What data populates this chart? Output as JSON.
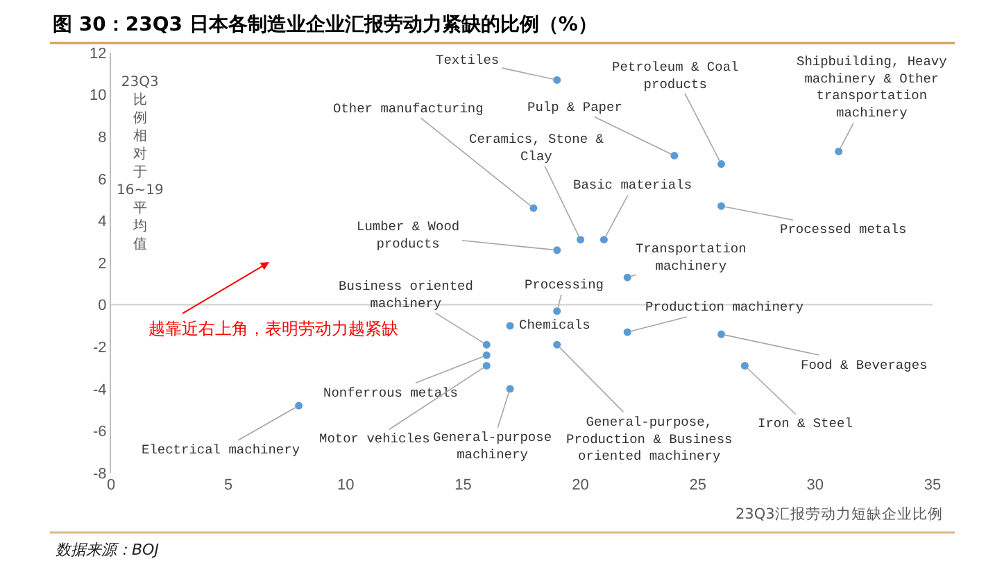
{
  "chart_data": {
    "type": "scatter",
    "title": "图 30：23Q3 日本各制造业企业汇报劳动力紧缺的比例（%）",
    "xlabel": "23Q3汇报劳动力短缺企业比例",
    "ylabel": "23Q3比例相对于16~19平均值",
    "x": [
      19,
      26,
      31,
      24,
      18,
      20,
      21,
      19,
      26,
      22,
      19,
      17,
      22,
      26,
      19,
      27,
      17,
      16,
      16,
      16,
      8
    ],
    "series": [
      {
        "color": "#5b9bd5",
        "values": [
          10.7,
          6.7,
          7.3,
          7.1,
          4.6,
          3.1,
          3.1,
          2.6,
          4.7,
          1.3,
          -0.3,
          -1.0,
          -1.3,
          -1.4,
          -1.9,
          -2.9,
          -4.0,
          -1.9,
          -2.4,
          -2.9,
          -4.8
        ]
      }
    ],
    "xlim": [
      0,
      35
    ],
    "ylim": [
      -8,
      12
    ],
    "xticks": [
      0,
      5,
      10,
      15,
      20,
      25,
      30,
      35
    ],
    "yticks": [
      -8,
      -6,
      -4,
      -2,
      0,
      2,
      4,
      6,
      8,
      10,
      12
    ],
    "grid": false,
    "marker": "circle",
    "ref_lines": [
      {
        "axis": "y",
        "value": 0,
        "color": "#d0d0d0"
      }
    ],
    "annotations": [
      {
        "text": "Textiles",
        "x": 19,
        "y": 10.7
      },
      {
        "text": "Petroleum & Coal products",
        "x": 26,
        "y": 6.7
      },
      {
        "text": "Shipbuilding, Heavy machinery & Other transportation machinery",
        "x": 31,
        "y": 7.3
      },
      {
        "text": "Pulp & Paper",
        "x": 24,
        "y": 7.1
      },
      {
        "text": "Other manufacturing",
        "x": 18,
        "y": 4.6
      },
      {
        "text": "Ceramics, Stone & Clay",
        "x": 20,
        "y": 3.1
      },
      {
        "text": "Basic materials",
        "x": 21,
        "y": 3.1
      },
      {
        "text": "Lumber & Wood products",
        "x": 19,
        "y": 2.6
      },
      {
        "text": "Processed metals",
        "x": 26,
        "y": 4.7
      },
      {
        "text": "Transportation machinery",
        "x": 22,
        "y": 1.3
      },
      {
        "text": "Processing",
        "x": 19,
        "y": -0.3
      },
      {
        "text": "Chemicals",
        "x": 17,
        "y": -1.0
      },
      {
        "text": "Production machinery",
        "x": 22,
        "y": -1.3
      },
      {
        "text": "Food & Beverages",
        "x": 26,
        "y": -1.4
      },
      {
        "text": "General-purpose, Production & Business oriented machinery",
        "x": 19,
        "y": -1.9
      },
      {
        "text": "Iron & Steel",
        "x": 27,
        "y": -2.9
      },
      {
        "text": "General-purpose machinery",
        "x": 17,
        "y": -4.0
      },
      {
        "text": "Business oriented machinery",
        "x": 16,
        "y": -1.9
      },
      {
        "text": "Nonferrous metals",
        "x": 16,
        "y": -2.4
      },
      {
        "text": "Motor vehicles",
        "x": 16,
        "y": -2.9
      },
      {
        "text": "Electrical machinery",
        "x": 8,
        "y": -4.8
      },
      "越靠近右上角，表明劳动力越紧缺",
      "数据来源：BOJ"
    ]
  }
}
